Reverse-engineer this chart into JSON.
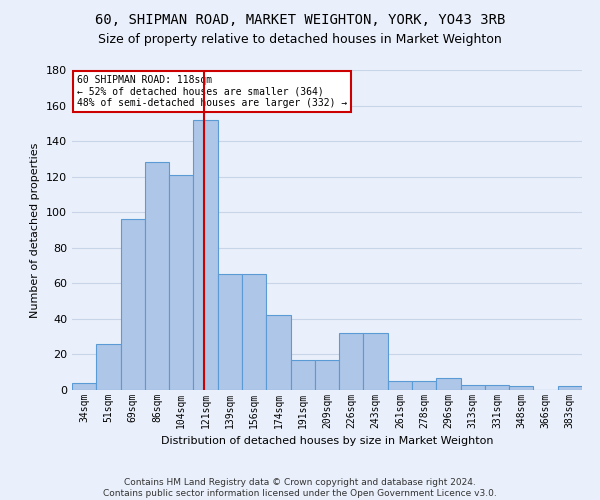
{
  "title1": "60, SHIPMAN ROAD, MARKET WEIGHTON, YORK, YO43 3RB",
  "title2": "Size of property relative to detached houses in Market Weighton",
  "xlabel": "Distribution of detached houses by size in Market Weighton",
  "ylabel": "Number of detached properties",
  "footer1": "Contains HM Land Registry data © Crown copyright and database right 2024.",
  "footer2": "Contains public sector information licensed under the Open Government Licence v3.0.",
  "categories": [
    "34sqm",
    "51sqm",
    "69sqm",
    "86sqm",
    "104sqm",
    "121sqm",
    "139sqm",
    "156sqm",
    "174sqm",
    "191sqm",
    "209sqm",
    "226sqm",
    "243sqm",
    "261sqm",
    "278sqm",
    "296sqm",
    "313sqm",
    "331sqm",
    "348sqm",
    "366sqm",
    "383sqm"
  ],
  "values": [
    4,
    26,
    96,
    128,
    121,
    152,
    65,
    65,
    42,
    17,
    17,
    32,
    32,
    5,
    5,
    7,
    3,
    3,
    2,
    0,
    2
  ],
  "bar_color": "#aec6e8",
  "bar_edge_color": "#5b9bd5",
  "reference_line_label": "60 SHIPMAN ROAD: 118sqm",
  "annotation_line1": "← 52% of detached houses are smaller (364)",
  "annotation_line2": "48% of semi-detached houses are larger (332) →",
  "ylim": [
    0,
    180
  ],
  "yticks": [
    0,
    20,
    40,
    60,
    80,
    100,
    120,
    140,
    160,
    180
  ],
  "bg_color": "#eaf0fb",
  "plot_bg_color": "#eaf0fb",
  "grid_color": "#c8d4e8",
  "title1_fontsize": 10,
  "title2_fontsize": 9,
  "annotation_box_color": "#ffffff",
  "annotation_box_edge": "#cc0000",
  "ref_line_color": "#cc0000",
  "ylabel_fontsize": 8,
  "xlabel_fontsize": 8,
  "tick_fontsize": 7,
  "footer_fontsize": 6.5
}
